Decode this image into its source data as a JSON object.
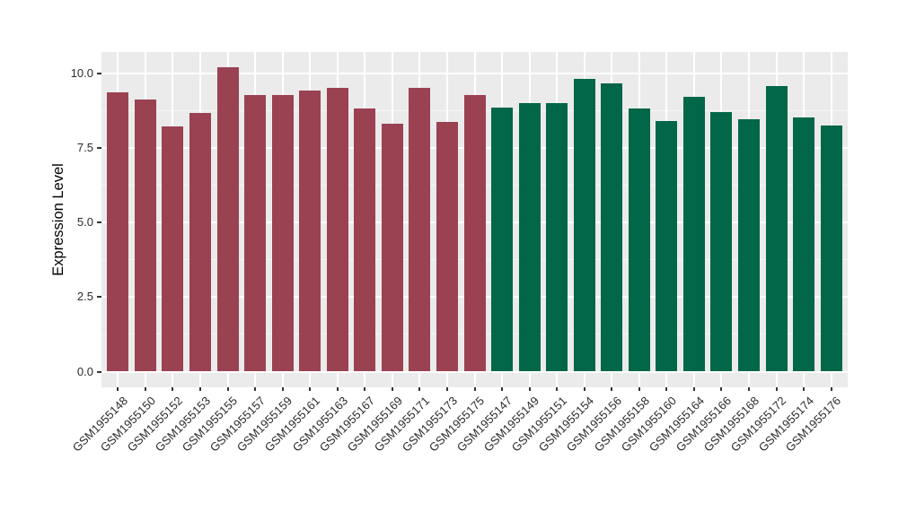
{
  "chart_data": {
    "type": "bar",
    "title": "",
    "xlabel": "",
    "ylabel": "Expression Level",
    "ylim": [
      0,
      10.7
    ],
    "grid": true,
    "legend_position": "none",
    "panel_background": "#EBEBEB",
    "gridline_color": "#FFFFFF",
    "group_colors": {
      "A": "#9A4252",
      "B": "#026649"
    },
    "yticks": [
      {
        "label": "0.0",
        "value": 0
      },
      {
        "label": "2.5",
        "value": 2.5
      },
      {
        "label": "5.0",
        "value": 5
      },
      {
        "label": "7.5",
        "value": 7.5
      },
      {
        "label": "10.0",
        "value": 10
      }
    ],
    "y_minor_gridlines": [
      1.25,
      3.75,
      6.25,
      8.75
    ],
    "bars": [
      {
        "label": "GSM1955148",
        "value": 9.35,
        "group": "A"
      },
      {
        "label": "GSM1955150",
        "value": 9.1,
        "group": "A"
      },
      {
        "label": "GSM1955152",
        "value": 8.2,
        "group": "A"
      },
      {
        "label": "GSM1955153",
        "value": 8.65,
        "group": "A"
      },
      {
        "label": "GSM1955155",
        "value": 10.2,
        "group": "A"
      },
      {
        "label": "GSM1955157",
        "value": 9.25,
        "group": "A"
      },
      {
        "label": "GSM1955159",
        "value": 9.25,
        "group": "A"
      },
      {
        "label": "GSM1955161",
        "value": 9.4,
        "group": "A"
      },
      {
        "label": "GSM1955163",
        "value": 9.5,
        "group": "A"
      },
      {
        "label": "GSM1955167",
        "value": 8.8,
        "group": "A"
      },
      {
        "label": "GSM1955169",
        "value": 8.3,
        "group": "A"
      },
      {
        "label": "GSM1955171",
        "value": 9.5,
        "group": "A"
      },
      {
        "label": "GSM1955173",
        "value": 8.35,
        "group": "A"
      },
      {
        "label": "GSM1955175",
        "value": 9.25,
        "group": "A"
      },
      {
        "label": "GSM1955147",
        "value": 8.85,
        "group": "B"
      },
      {
        "label": "GSM1955149",
        "value": 9.0,
        "group": "B"
      },
      {
        "label": "GSM1955151",
        "value": 9.0,
        "group": "B"
      },
      {
        "label": "GSM1955154",
        "value": 9.8,
        "group": "B"
      },
      {
        "label": "GSM1955156",
        "value": 9.65,
        "group": "B"
      },
      {
        "label": "GSM1955158",
        "value": 8.8,
        "group": "B"
      },
      {
        "label": "GSM1955160",
        "value": 8.4,
        "group": "B"
      },
      {
        "label": "GSM1955164",
        "value": 9.2,
        "group": "B"
      },
      {
        "label": "GSM1955166",
        "value": 8.7,
        "group": "B"
      },
      {
        "label": "GSM1955168",
        "value": 8.45,
        "group": "B"
      },
      {
        "label": "GSM1955172",
        "value": 9.55,
        "group": "B"
      },
      {
        "label": "GSM1955174",
        "value": 8.5,
        "group": "B"
      },
      {
        "label": "GSM1955176",
        "value": 8.25,
        "group": "B"
      }
    ]
  }
}
